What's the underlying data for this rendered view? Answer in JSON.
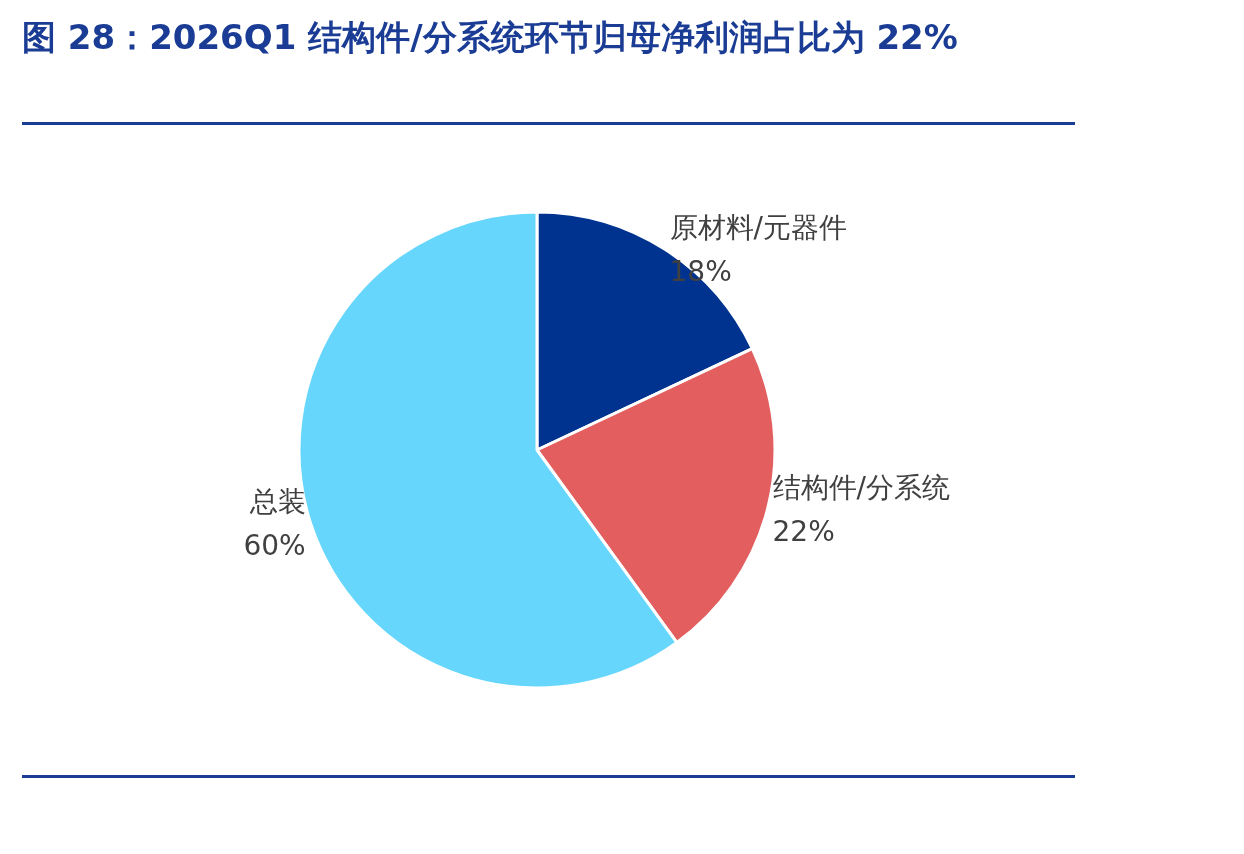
{
  "chart_data": {
    "type": "pie",
    "title": "图 28：2026Q1 结构件/分系统环节归母净利润占比为 22%",
    "categories": [
      "原材料/元器件",
      "结构件/分系统",
      "总装"
    ],
    "values": [
      18,
      22,
      60
    ],
    "value_labels": [
      "18%",
      "22%",
      "60%"
    ],
    "colors": [
      "#00338f",
      "#e35f5f",
      "#66d6fc"
    ],
    "legend": false
  }
}
